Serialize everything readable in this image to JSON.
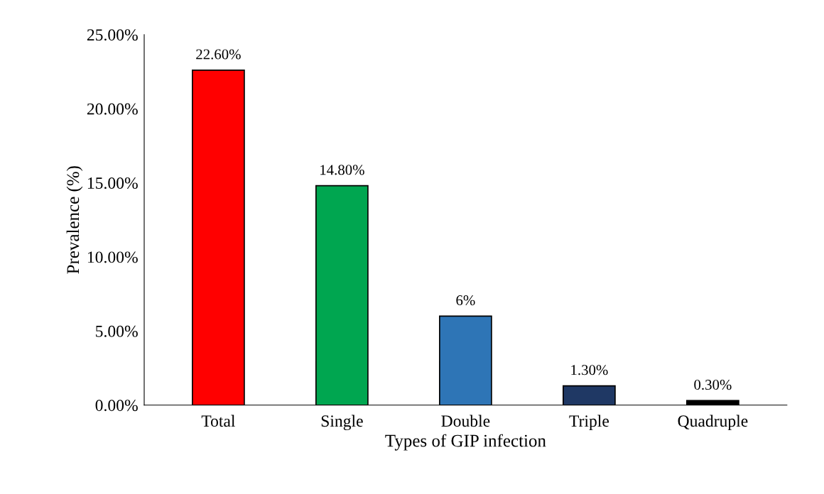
{
  "chart_data": {
    "type": "bar",
    "xlabel": "Types of GIP infection",
    "ylabel": "Prevalence (%)",
    "categories": [
      "Total",
      "Single",
      "Double",
      "Triple",
      "Quadruple"
    ],
    "values": [
      22.6,
      14.8,
      6,
      1.3,
      0.3
    ],
    "colors": [
      "#ff0000",
      "#00a650",
      "#2e75b6",
      "#1f3864",
      "#000000"
    ],
    "value_labels": [
      "22.60%",
      "14.80%",
      "6%",
      "1.30%",
      "0.30%"
    ],
    "ylim": [
      0,
      25
    ],
    "yticks": [
      {
        "value": 0,
        "label": "0.00%"
      },
      {
        "value": 5,
        "label": "5.00%"
      },
      {
        "value": 10,
        "label": "10.00%"
      },
      {
        "value": 15,
        "label": "15.00%"
      },
      {
        "value": 20,
        "label": "20.00%"
      },
      {
        "value": 25,
        "label": "25.00%"
      }
    ],
    "grid": false,
    "legend": false
  }
}
